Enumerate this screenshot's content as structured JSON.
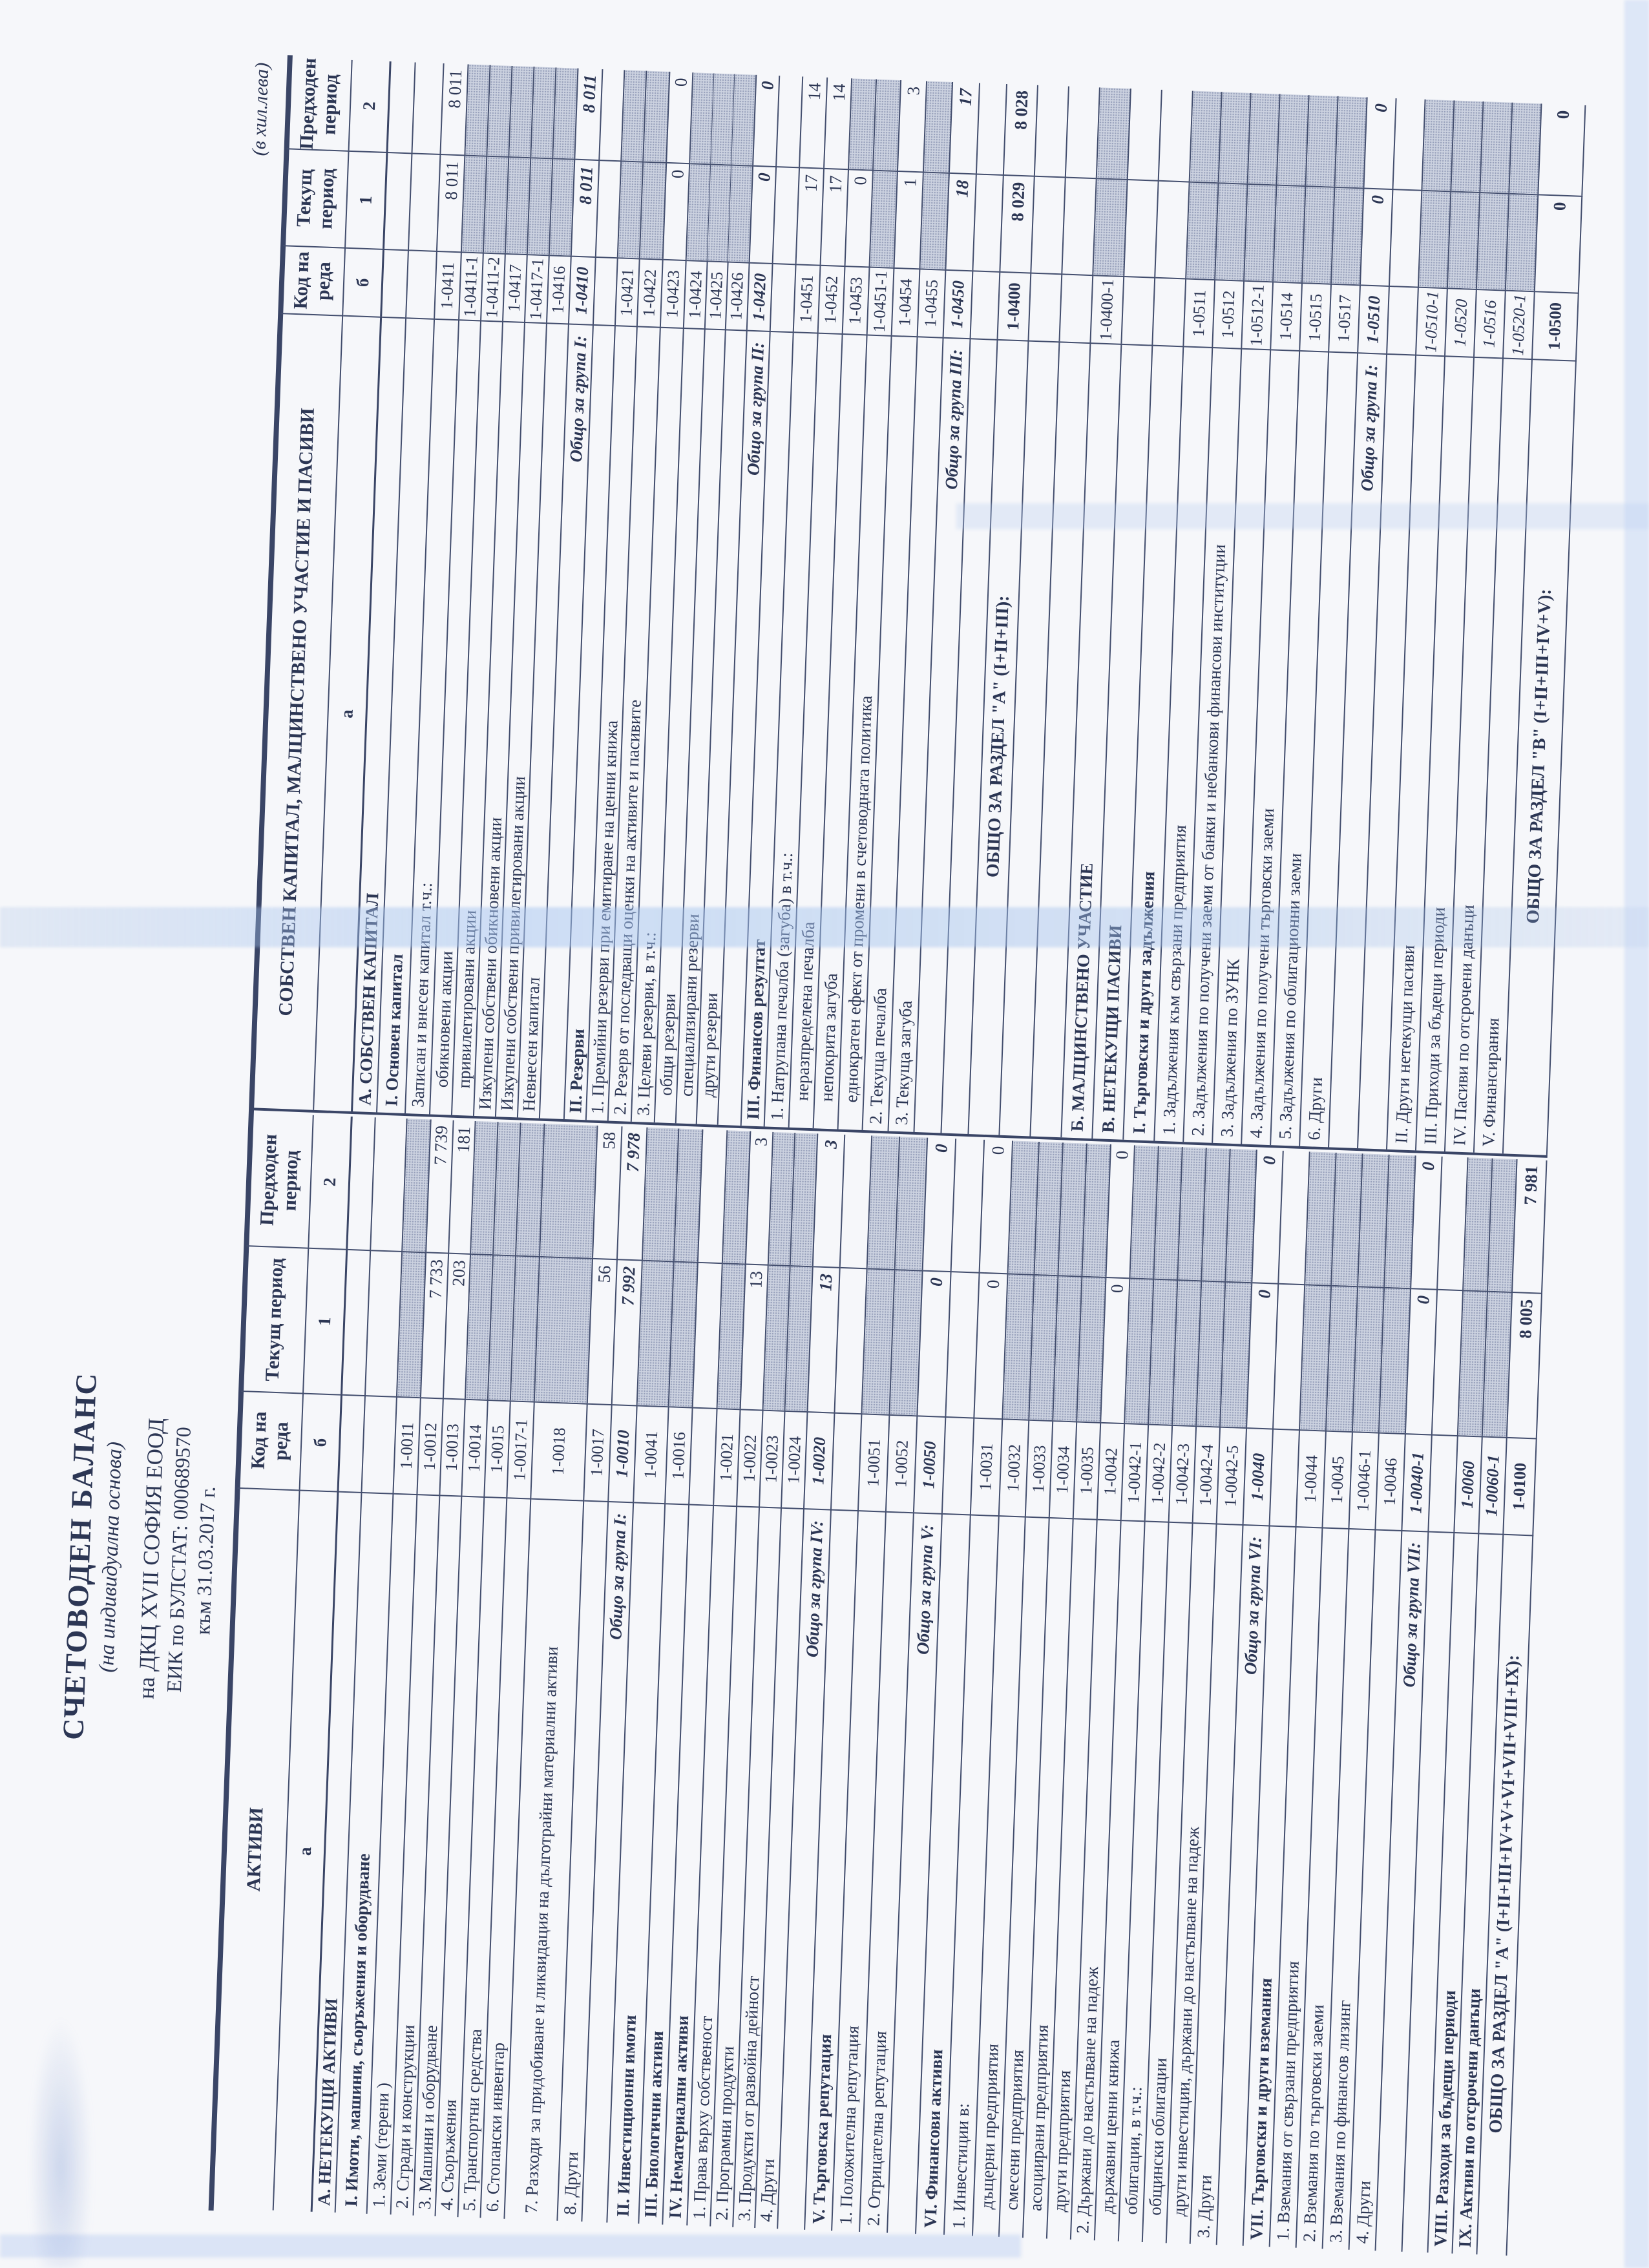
{
  "unit_note": "(в хил.лева)",
  "title": {
    "main": "СЧЕТОВОДЕН  БАЛАНС",
    "sub": "(на индивидуална основа)",
    "company": "на ДКЦ XVII СОФИЯ ЕООД",
    "eik": "ЕИК по БУЛСТАТ: 000689570",
    "as_of": "към 31.03.2017 г."
  },
  "colors": {
    "ink": "#2c3654",
    "shade_fill": "#ccd2e0",
    "paper": "#f6f7fa",
    "artifact_blue": "#aac4eb"
  },
  "columns": {
    "code": "Код на реда",
    "cur": "Текущ период",
    "prev": "Предходен период",
    "letters": [
      "а",
      "б",
      "1",
      "2"
    ]
  },
  "assets": {
    "title": "АКТИВИ",
    "rows": [
      {
        "t": "А. НЕТЕКУЩИ АКТИВИ",
        "c": "",
        "v1": "",
        "v2": "",
        "s": "h",
        "sh": "n"
      },
      {
        "t": "I. Имоти, машини, съоръжения и оборудване",
        "c": "",
        "v1": "",
        "v2": "",
        "s": "h",
        "sh": "n"
      },
      {
        "t": "1. Земи (терени )",
        "c": "1-0011",
        "v1": "",
        "v2": "",
        "s": "p",
        "sh": "b"
      },
      {
        "t": "2. Сгради и конструкции",
        "c": "1-0012",
        "v1": "7 733",
        "v2": "7 739",
        "s": "p",
        "sh": "n"
      },
      {
        "t": "3. Машини и оборудване",
        "c": "1-0013",
        "v1": "203",
        "v2": "181",
        "s": "p",
        "sh": "n"
      },
      {
        "t": "4. Съоръжения",
        "c": "1-0014",
        "v1": "",
        "v2": "",
        "s": "p",
        "sh": "b"
      },
      {
        "t": "5. Транспортни средства",
        "c": "1-0015",
        "v1": "",
        "v2": "",
        "s": "p",
        "sh": "b"
      },
      {
        "t": "6. Стопански инвентар",
        "c": "1-0017-1",
        "v1": "",
        "v2": "",
        "s": "p",
        "sh": "b"
      },
      {
        "t": "7. Разходи за придобиване и ликвидация на дълготрайни материални активи",
        "c": "1-0018",
        "v1": "",
        "v2": "",
        "s": "p",
        "sh": "b"
      },
      {
        "t": "8. Други",
        "c": "1-0017",
        "v1": "56",
        "v2": "58",
        "s": "p",
        "sh": "n"
      },
      {
        "t": "Общо за група I:",
        "c": "1-0010",
        "v1": "7 992",
        "v2": "7 978",
        "s": "s",
        "sh": "n"
      },
      {
        "t": "II. Инвестиционни имоти",
        "c": "1-0041",
        "v1": "",
        "v2": "",
        "s": "h",
        "sh": "b"
      },
      {
        "t": "III. Биологични активи",
        "c": "1-0016",
        "v1": "",
        "v2": "",
        "s": "h",
        "sh": "b"
      },
      {
        "t": "IV. Нематериални активи",
        "c": "",
        "v1": "",
        "v2": "",
        "s": "h",
        "sh": "n"
      },
      {
        "t": "1. Права върху собственост",
        "c": "1-0021",
        "v1": "",
        "v2": "",
        "s": "p",
        "sh": "b"
      },
      {
        "t": "2. Програмни продукти",
        "c": "1-0022",
        "v1": "13",
        "v2": "3",
        "s": "p",
        "sh": "n"
      },
      {
        "t": "3. Продукти от развойна дейност",
        "c": "1-0023",
        "v1": "",
        "v2": "",
        "s": "p",
        "sh": "b"
      },
      {
        "t": "4. Други",
        "c": "1-0024",
        "v1": "",
        "v2": "",
        "s": "p",
        "sh": "b"
      },
      {
        "t": "Общо за група IV:",
        "c": "1-0020",
        "v1": "13",
        "v2": "3",
        "s": "s",
        "sh": "n"
      },
      {
        "t": "V. Търговска репутация",
        "c": "",
        "v1": "",
        "v2": "",
        "s": "h",
        "sh": "n"
      },
      {
        "t": "1. Положителна репутация",
        "c": "1-0051",
        "v1": "",
        "v2": "",
        "s": "p",
        "sh": "b"
      },
      {
        "t": "2. Отрицателна репутация",
        "c": "1-0052",
        "v1": "",
        "v2": "",
        "s": "p",
        "sh": "b"
      },
      {
        "t": "Общо за група V:",
        "c": "1-0050",
        "v1": "0",
        "v2": "0",
        "s": "s",
        "sh": "n"
      },
      {
        "t": "VI. Финансови активи",
        "c": "",
        "v1": "",
        "v2": "",
        "s": "h",
        "sh": "n"
      },
      {
        "t": "1. Инвестиции в:",
        "c": "1-0031",
        "v1": "0",
        "v2": "0",
        "s": "p",
        "sh": "n"
      },
      {
        "t": "дъщерни предприятия",
        "c": "1-0032",
        "v1": "",
        "v2": "",
        "s": "p",
        "i": 1,
        "sh": "b"
      },
      {
        "t": "смесени предприятия",
        "c": "1-0033",
        "v1": "",
        "v2": "",
        "s": "p",
        "i": 1,
        "sh": "b"
      },
      {
        "t": "асоциирани предприятия",
        "c": "1-0034",
        "v1": "",
        "v2": "",
        "s": "p",
        "i": 1,
        "sh": "b"
      },
      {
        "t": "други предприятия",
        "c": "1-0035",
        "v1": "",
        "v2": "",
        "s": "p",
        "i": 1,
        "sh": "b"
      },
      {
        "t": "2. Държани до настъпване на падеж",
        "c": "1-0042",
        "v1": "0",
        "v2": "0",
        "s": "p",
        "sh": "n"
      },
      {
        "t": "държавни ценни книжа",
        "c": "1-0042-1",
        "v1": "",
        "v2": "",
        "s": "p",
        "i": 1,
        "sh": "b"
      },
      {
        "t": "облигации, в т.ч.:",
        "c": "1-0042-2",
        "v1": "",
        "v2": "",
        "s": "p",
        "i": 1,
        "sh": "b"
      },
      {
        "t": "общински облигации",
        "c": "1-0042-3",
        "v1": "",
        "v2": "",
        "s": "p",
        "i": 1,
        "sh": "b"
      },
      {
        "t": "други инвестиции, държани до настъпване на падеж",
        "c": "1-0042-4",
        "v1": "",
        "v2": "",
        "s": "p",
        "i": 1,
        "sh": "b"
      },
      {
        "t": "3. Други",
        "c": "1-0042-5",
        "v1": "",
        "v2": "",
        "s": "p",
        "sh": "b"
      },
      {
        "t": "Общо за група VI:",
        "c": "1-0040",
        "v1": "0",
        "v2": "0",
        "s": "s",
        "sh": "n"
      },
      {
        "t": "VII. Търговски и други вземания",
        "c": "",
        "v1": "",
        "v2": "",
        "s": "h",
        "sh": "n"
      },
      {
        "t": "1. Вземания от свързани предприятия",
        "c": "1-0044",
        "v1": "",
        "v2": "",
        "s": "p",
        "sh": "b"
      },
      {
        "t": "2. Вземания по търговски заеми",
        "c": "1-0045",
        "v1": "",
        "v2": "",
        "s": "p",
        "sh": "b"
      },
      {
        "t": "3. Вземания по финансов лизинг",
        "c": "1-0046-1",
        "v1": "",
        "v2": "",
        "s": "p",
        "sh": "b"
      },
      {
        "t": "4. Други",
        "c": "1-0046",
        "v1": "",
        "v2": "",
        "s": "p",
        "sh": "b"
      },
      {
        "t": "Общо за група VII:",
        "c": "1-0040-1",
        "v1": "0",
        "v2": "0",
        "s": "s",
        "sh": "n"
      },
      {
        "t": "",
        "c": "",
        "v1": "",
        "v2": "",
        "s": "p",
        "sh": "n"
      },
      {
        "t": "VIII. Разходи за бъдещи периоди",
        "c": "1-0060",
        "v1": "",
        "v2": "",
        "s": "hi",
        "sh": "b"
      },
      {
        "t": "IX. Активи по отсрочени данъци",
        "c": "1-0060-1",
        "v1": "",
        "v2": "",
        "s": "hi",
        "sh": "b"
      },
      {
        "t": "ОБЩО ЗА РАЗДЕЛ \"А\" (I+II+III+IV+V+VI+VII+VIII+IX):",
        "c": "1-0100",
        "v1": "8 005",
        "v2": "7 981",
        "s": "t",
        "sh": "n"
      }
    ]
  },
  "liabilities": {
    "title": "СОБСТВЕН КАПИТАЛ, МАЛЦИНСТВЕНО УЧАСТИЕ И ПАСИВИ",
    "rows": [
      {
        "t": "А. СОБСТВЕН КАПИТАЛ",
        "c": "",
        "v1": "",
        "v2": "",
        "s": "h",
        "sh": "n"
      },
      {
        "t": "I. Основен капитал",
        "c": "",
        "v1": "",
        "v2": "",
        "s": "h",
        "sh": "n"
      },
      {
        "t": "Записан и внесен капитал т.ч.:",
        "c": "1-0411",
        "v1": "8 011",
        "v2": "8 011",
        "s": "p",
        "sh": "n"
      },
      {
        "t": "обикновени акции",
        "c": "1-0411-1",
        "v1": "",
        "v2": "",
        "s": "p",
        "i": 1,
        "sh": "b"
      },
      {
        "t": "привилегировани акции",
        "c": "1-0411-2",
        "v1": "",
        "v2": "",
        "s": "p",
        "i": 1,
        "sh": "b"
      },
      {
        "t": "Изкупени собствени обикновени акции",
        "c": "1-0417",
        "v1": "",
        "v2": "",
        "s": "p",
        "sh": "b"
      },
      {
        "t": "Изкупени собствени привилегировани акции",
        "c": "1-0417-1",
        "v1": "",
        "v2": "",
        "s": "p",
        "sh": "b"
      },
      {
        "t": "Невнесен капитал",
        "c": "1-0416",
        "v1": "",
        "v2": "",
        "s": "p",
        "sh": "b"
      },
      {
        "t": "Общо за група I:",
        "c": "1-0410",
        "v1": "8 011",
        "v2": "8 011",
        "s": "s",
        "sh": "n"
      },
      {
        "t": "II. Резерви",
        "c": "",
        "v1": "",
        "v2": "",
        "s": "h",
        "sh": "n"
      },
      {
        "t": "1. Премийни резерви при емитиране на ценни книжа",
        "c": "1-0421",
        "v1": "",
        "v2": "",
        "s": "p",
        "sh": "b"
      },
      {
        "t": "2. Резерв от последващи оценки на активите и пасивите",
        "c": "1-0422",
        "v1": "",
        "v2": "",
        "s": "p",
        "sh": "b"
      },
      {
        "t": "3. Целеви резерви, в т.ч.:",
        "c": "1-0423",
        "v1": "0",
        "v2": "0",
        "s": "p",
        "sh": "n"
      },
      {
        "t": "общи резерви",
        "c": "1-0424",
        "v1": "",
        "v2": "",
        "s": "p",
        "i": 1,
        "sh": "b"
      },
      {
        "t": "специализирани резерви",
        "c": "1-0425",
        "v1": "",
        "v2": "",
        "s": "p",
        "i": 1,
        "sh": "b"
      },
      {
        "t": "други резерви",
        "c": "1-0426",
        "v1": "",
        "v2": "",
        "s": "p",
        "i": 1,
        "sh": "b"
      },
      {
        "t": "Общо за група II:",
        "c": "1-0420",
        "v1": "0",
        "v2": "0",
        "s": "s",
        "sh": "n"
      },
      {
        "t": "III. Финансов резултат",
        "c": "",
        "v1": "",
        "v2": "",
        "s": "h",
        "sh": "n"
      },
      {
        "t": "1. Натрупана печалба (загуба) в т.ч.:",
        "c": "1-0451",
        "v1": "17",
        "v2": "14",
        "s": "p",
        "sh": "n"
      },
      {
        "t": "неразпределена печалба",
        "c": "1-0452",
        "v1": "17",
        "v2": "14",
        "s": "p",
        "i": 1,
        "sh": "n"
      },
      {
        "t": "непокрита загуба",
        "c": "1-0453",
        "v1": "0",
        "v2": "",
        "s": "p",
        "i": 1,
        "sh": "p2"
      },
      {
        "t": "еднократен ефект от промени в счетоводната политика",
        "c": "1-0451-1",
        "v1": "",
        "v2": "",
        "s": "p",
        "i": 1,
        "sh": "b"
      },
      {
        "t": "2. Текуща печалба",
        "c": "1-0454",
        "v1": "1",
        "v2": "3",
        "s": "p",
        "sh": "n"
      },
      {
        "t": "3. Текуща загуба",
        "c": "1-0455",
        "v1": "",
        "v2": "",
        "s": "p",
        "sh": "b"
      },
      {
        "t": "Общо за група III:",
        "c": "1-0450",
        "v1": "18",
        "v2": "17",
        "s": "s",
        "sh": "n"
      },
      {
        "t": "",
        "c": "",
        "v1": "",
        "v2": "",
        "s": "p",
        "sh": "n"
      },
      {
        "t": "ОБЩО ЗА РАЗДЕЛ \"А\" (I+II+III):",
        "c": "1-0400",
        "v1": "8 029",
        "v2": "8 028",
        "s": "t",
        "sh": "n"
      },
      {
        "t": "",
        "c": "",
        "v1": "",
        "v2": "",
        "s": "p",
        "sh": "n"
      },
      {
        "t": "",
        "c": "",
        "v1": "",
        "v2": "",
        "s": "p",
        "sh": "n"
      },
      {
        "t": "Б. МАЛЦИНСТВЕНО УЧАСТИЕ",
        "c": "1-0400-1",
        "v1": "",
        "v2": "",
        "s": "h",
        "sh": "b"
      },
      {
        "t": "В. НЕТЕКУЩИ ПАСИВИ",
        "c": "",
        "v1": "",
        "v2": "",
        "s": "h",
        "sh": "n"
      },
      {
        "t": "I. Търговски и други задължения",
        "c": "",
        "v1": "",
        "v2": "",
        "s": "h",
        "sh": "n"
      },
      {
        "t": "1. Задължения към свързани предприятия",
        "c": "1-0511",
        "v1": "",
        "v2": "",
        "s": "p",
        "sh": "b"
      },
      {
        "t": "2. Задължения по получени заеми от банки и небанкови финансови институции",
        "c": "1-0512",
        "v1": "",
        "v2": "",
        "s": "p",
        "sh": "b"
      },
      {
        "t": "3. Задължения по ЗУНК",
        "c": "1-0512-1",
        "v1": "",
        "v2": "",
        "s": "p",
        "sh": "b"
      },
      {
        "t": "4. Задължения по получени търговски заеми",
        "c": "1-0514",
        "v1": "",
        "v2": "",
        "s": "p",
        "sh": "b"
      },
      {
        "t": "5. Задължения по облигационни заеми",
        "c": "1-0515",
        "v1": "",
        "v2": "",
        "s": "p",
        "sh": "b"
      },
      {
        "t": "6. Други",
        "c": "1-0517",
        "v1": "",
        "v2": "",
        "s": "p",
        "sh": "b"
      },
      {
        "t": "Общо за група I:",
        "c": "1-0510",
        "v1": "0",
        "v2": "0",
        "s": "s",
        "sh": "n"
      },
      {
        "t": "",
        "c": "",
        "v1": "",
        "v2": "",
        "s": "p",
        "sh": "n"
      },
      {
        "t": "II. Други нетекущи пасиви",
        "c": "1-0510-1",
        "v1": "",
        "v2": "",
        "s": "pi",
        "sh": "b"
      },
      {
        "t": "III. Приходи за бъдещи периоди",
        "c": "1-0520",
        "v1": "",
        "v2": "",
        "s": "pi",
        "sh": "b"
      },
      {
        "t": "IV. Пасиви по отсрочени данъци",
        "c": "1-0516",
        "v1": "",
        "v2": "",
        "s": "pi",
        "sh": "b"
      },
      {
        "t": "V. Финансирания",
        "c": "1-0520-1",
        "v1": "",
        "v2": "",
        "s": "pi",
        "sh": "b"
      },
      {
        "t": "ОБЩО ЗА РАЗДЕЛ \"В\" (I+II+III+IV+V):",
        "c": "1-0500",
        "v1": "0",
        "v2": "0",
        "s": "t",
        "sh": "n"
      }
    ]
  }
}
